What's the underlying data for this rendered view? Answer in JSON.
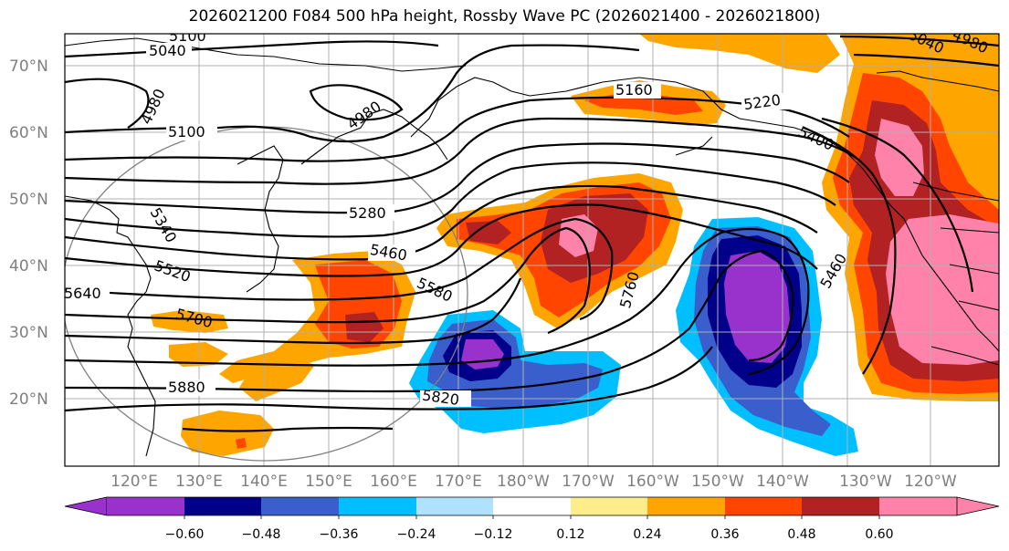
{
  "title": "2026021200 F084 500 hPa height, Rossby Wave PC (2026021400 - 2026021800)",
  "map": {
    "lat_labels": [
      "70°N",
      "60°N",
      "50°N",
      "40°N",
      "30°N",
      "20°N"
    ],
    "lon_labels": [
      "120°E",
      "130°E",
      "140°E",
      "150°E",
      "160°E",
      "170°E",
      "180°W",
      "170°W",
      "160°W",
      "150°W",
      "140°W",
      "130°W",
      "120°W"
    ],
    "contour_labels": [
      "5100",
      "5040",
      "4980",
      "4980",
      "5100",
      "5340",
      "5280",
      "5460",
      "5520",
      "5640",
      "5580",
      "5700",
      "5880",
      "5820",
      "5760",
      "5160",
      "5220",
      "5400",
      "5460",
      "5040",
      "4980"
    ]
  },
  "colorbar": {
    "tick_labels": [
      "−0.60",
      "−0.48",
      "−0.36",
      "−0.24",
      "−0.12",
      "0.12",
      "0.24",
      "0.36",
      "0.48",
      "0.60"
    ],
    "colors": [
      "#9932CC",
      "#00008B",
      "#3A5FCD",
      "#00BFFF",
      "#B0E2FF",
      "#FFFFFF",
      "#FFEC8B",
      "#FFA500",
      "#FF4500",
      "#B22222",
      "#FF82AB"
    ]
  },
  "shading_colors": {
    "neg_strong": "#9932CC",
    "neg_1": "#00008B",
    "neg_2": "#3A5FCD",
    "neg_3": "#00BFFF",
    "pos_1": "#FFA500",
    "pos_2": "#FF4500",
    "pos_3": "#B22222",
    "pos_strong": "#FF82AB"
  }
}
